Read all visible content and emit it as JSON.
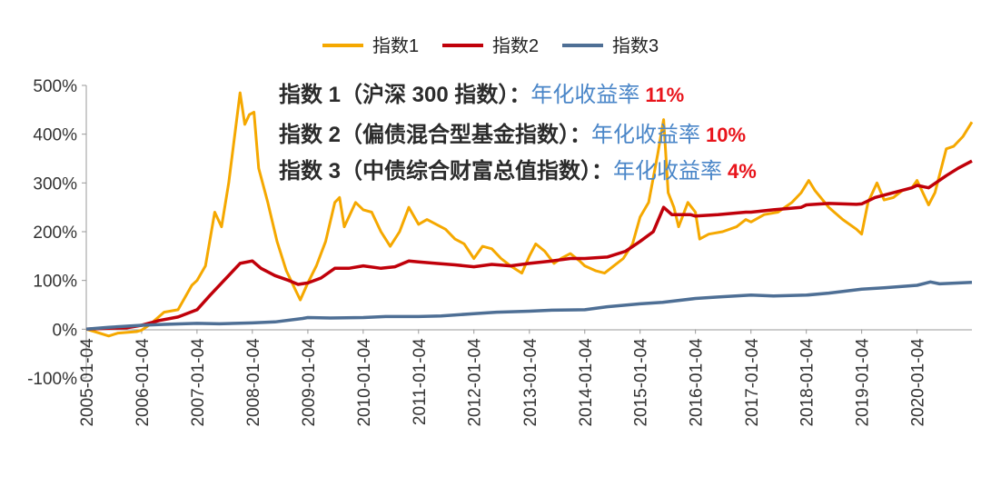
{
  "chart_data": {
    "type": "line",
    "title": "",
    "xlabel": "",
    "ylabel": "",
    "ylim": [
      -100,
      500
    ],
    "y_ticks": [
      -100,
      0,
      100,
      200,
      300,
      400,
      500
    ],
    "y_tick_labels": [
      "-100%",
      "0%",
      "100%",
      "200%",
      "300%",
      "400%",
      "500%"
    ],
    "x_ticks": [
      "2005-01-04",
      "2006-01-04",
      "2007-01-04",
      "2008-01-04",
      "2009-01-04",
      "2010-01-04",
      "2011-01-04",
      "2012-01-04",
      "2013-01-04",
      "2014-01-04",
      "2015-01-04",
      "2016-01-04",
      "2017-01-04",
      "2018-01-04",
      "2019-01-04",
      "2020-01-04"
    ],
    "x_end": "2020-12-31",
    "legend_position": "top-center",
    "grid": false,
    "series": [
      {
        "name": "指数1",
        "color": "#f5a800",
        "points": [
          [
            "2005-01-04",
            0
          ],
          [
            "2005-03-01",
            -5
          ],
          [
            "2005-06-01",
            -14
          ],
          [
            "2005-08-01",
            -8
          ],
          [
            "2005-12-01",
            -5
          ],
          [
            "2006-01-04",
            -2
          ],
          [
            "2006-03-01",
            10
          ],
          [
            "2006-06-01",
            35
          ],
          [
            "2006-09-01",
            40
          ],
          [
            "2006-12-01",
            90
          ],
          [
            "2007-01-04",
            100
          ],
          [
            "2007-03-01",
            130
          ],
          [
            "2007-05-01",
            240
          ],
          [
            "2007-06-15",
            210
          ],
          [
            "2007-08-01",
            300
          ],
          [
            "2007-10-15",
            485
          ],
          [
            "2007-11-15",
            420
          ],
          [
            "2007-12-15",
            440
          ],
          [
            "2008-01-15",
            445
          ],
          [
            "2008-02-15",
            330
          ],
          [
            "2008-04-15",
            260
          ],
          [
            "2008-06-15",
            180
          ],
          [
            "2008-08-15",
            120
          ],
          [
            "2008-10-15",
            80
          ],
          [
            "2008-11-15",
            60
          ],
          [
            "2009-01-04",
            95
          ],
          [
            "2009-03-01",
            130
          ],
          [
            "2009-05-01",
            180
          ],
          [
            "2009-07-01",
            260
          ],
          [
            "2009-08-01",
            270
          ],
          [
            "2009-09-01",
            210
          ],
          [
            "2009-11-15",
            260
          ],
          [
            "2010-01-04",
            245
          ],
          [
            "2010-03-01",
            240
          ],
          [
            "2010-05-01",
            200
          ],
          [
            "2010-07-01",
            170
          ],
          [
            "2010-09-01",
            200
          ],
          [
            "2010-11-01",
            250
          ],
          [
            "2011-01-04",
            215
          ],
          [
            "2011-03-01",
            225
          ],
          [
            "2011-05-01",
            215
          ],
          [
            "2011-07-01",
            205
          ],
          [
            "2011-09-01",
            185
          ],
          [
            "2011-11-01",
            175
          ],
          [
            "2012-01-04",
            145
          ],
          [
            "2012-03-01",
            170
          ],
          [
            "2012-05-01",
            165
          ],
          [
            "2012-07-01",
            145
          ],
          [
            "2012-09-01",
            130
          ],
          [
            "2012-11-15",
            115
          ],
          [
            "2013-01-04",
            150
          ],
          [
            "2013-02-15",
            175
          ],
          [
            "2013-04-15",
            160
          ],
          [
            "2013-06-15",
            135
          ],
          [
            "2013-08-01",
            145
          ],
          [
            "2013-10-01",
            155
          ],
          [
            "2013-12-01",
            140
          ],
          [
            "2014-01-04",
            130
          ],
          [
            "2014-03-15",
            120
          ],
          [
            "2014-05-15",
            115
          ],
          [
            "2014-07-15",
            130
          ],
          [
            "2014-09-15",
            145
          ],
          [
            "2014-11-15",
            175
          ],
          [
            "2015-01-04",
            230
          ],
          [
            "2015-03-01",
            260
          ],
          [
            "2015-05-01",
            360
          ],
          [
            "2015-06-08",
            430
          ],
          [
            "2015-07-08",
            280
          ],
          [
            "2015-08-15",
            250
          ],
          [
            "2015-09-15",
            210
          ],
          [
            "2015-11-15",
            260
          ],
          [
            "2016-01-04",
            240
          ],
          [
            "2016-02-01",
            185
          ],
          [
            "2016-04-01",
            195
          ],
          [
            "2016-07-01",
            200
          ],
          [
            "2016-10-01",
            210
          ],
          [
            "2016-12-01",
            225
          ],
          [
            "2017-01-04",
            220
          ],
          [
            "2017-04-01",
            235
          ],
          [
            "2017-07-01",
            240
          ],
          [
            "2017-10-01",
            260
          ],
          [
            "2017-12-01",
            280
          ],
          [
            "2018-01-20",
            305
          ],
          [
            "2018-03-01",
            285
          ],
          [
            "2018-06-01",
            250
          ],
          [
            "2018-09-01",
            225
          ],
          [
            "2018-12-01",
            205
          ],
          [
            "2019-01-04",
            195
          ],
          [
            "2019-02-15",
            260
          ],
          [
            "2019-04-15",
            300
          ],
          [
            "2019-06-01",
            265
          ],
          [
            "2019-08-01",
            270
          ],
          [
            "2019-10-01",
            285
          ],
          [
            "2019-12-01",
            290
          ],
          [
            "2020-01-04",
            305
          ],
          [
            "2020-03-20",
            255
          ],
          [
            "2020-05-01",
            280
          ],
          [
            "2020-07-15",
            370
          ],
          [
            "2020-09-01",
            375
          ],
          [
            "2020-11-01",
            395
          ],
          [
            "2020-12-31",
            425
          ]
        ]
      },
      {
        "name": "指数2",
        "color": "#c0000a",
        "points": [
          [
            "2005-01-04",
            0
          ],
          [
            "2005-06-01",
            2
          ],
          [
            "2005-10-01",
            3
          ],
          [
            "2006-01-04",
            8
          ],
          [
            "2006-05-01",
            18
          ],
          [
            "2006-09-01",
            25
          ],
          [
            "2007-01-04",
            40
          ],
          [
            "2007-04-01",
            70
          ],
          [
            "2007-07-01",
            100
          ],
          [
            "2007-10-15",
            135
          ],
          [
            "2008-01-04",
            140
          ],
          [
            "2008-03-01",
            125
          ],
          [
            "2008-06-01",
            110
          ],
          [
            "2008-09-01",
            100
          ],
          [
            "2008-11-01",
            92
          ],
          [
            "2009-01-04",
            95
          ],
          [
            "2009-04-01",
            105
          ],
          [
            "2009-07-01",
            125
          ],
          [
            "2009-10-01",
            125
          ],
          [
            "2010-01-04",
            130
          ],
          [
            "2010-05-01",
            125
          ],
          [
            "2010-08-01",
            128
          ],
          [
            "2010-11-01",
            140
          ],
          [
            "2011-01-04",
            138
          ],
          [
            "2011-05-01",
            135
          ],
          [
            "2011-09-01",
            132
          ],
          [
            "2012-01-04",
            128
          ],
          [
            "2012-05-01",
            133
          ],
          [
            "2012-09-01",
            130
          ],
          [
            "2013-01-04",
            135
          ],
          [
            "2013-06-01",
            140
          ],
          [
            "2013-10-01",
            145
          ],
          [
            "2014-01-04",
            145
          ],
          [
            "2014-06-01",
            148
          ],
          [
            "2014-10-01",
            160
          ],
          [
            "2015-01-04",
            180
          ],
          [
            "2015-04-01",
            200
          ],
          [
            "2015-06-08",
            250
          ],
          [
            "2015-08-01",
            235
          ],
          [
            "2015-12-01",
            235
          ],
          [
            "2016-01-04",
            232
          ],
          [
            "2016-06-01",
            235
          ],
          [
            "2016-12-01",
            240
          ],
          [
            "2017-01-04",
            240
          ],
          [
            "2017-06-01",
            245
          ],
          [
            "2017-12-01",
            250
          ],
          [
            "2018-01-04",
            255
          ],
          [
            "2018-06-01",
            258
          ],
          [
            "2018-12-01",
            256
          ],
          [
            "2019-01-04",
            257
          ],
          [
            "2019-04-01",
            270
          ],
          [
            "2019-08-01",
            280
          ],
          [
            "2019-12-01",
            290
          ],
          [
            "2020-01-04",
            295
          ],
          [
            "2020-03-20",
            290
          ],
          [
            "2020-07-15",
            315
          ],
          [
            "2020-10-01",
            330
          ],
          [
            "2020-12-31",
            345
          ]
        ]
      },
      {
        "name": "指数3",
        "color": "#4e6f95",
        "points": [
          [
            "2005-01-04",
            0
          ],
          [
            "2005-06-01",
            4
          ],
          [
            "2006-01-04",
            8
          ],
          [
            "2006-06-01",
            10
          ],
          [
            "2007-01-04",
            12
          ],
          [
            "2007-06-01",
            11
          ],
          [
            "2008-01-04",
            13
          ],
          [
            "2008-06-01",
            15
          ],
          [
            "2008-12-01",
            22
          ],
          [
            "2009-01-04",
            24
          ],
          [
            "2009-06-01",
            23
          ],
          [
            "2010-01-04",
            24
          ],
          [
            "2010-06-01",
            26
          ],
          [
            "2011-01-04",
            26
          ],
          [
            "2011-06-01",
            27
          ],
          [
            "2012-01-04",
            32
          ],
          [
            "2012-06-01",
            35
          ],
          [
            "2013-01-04",
            37
          ],
          [
            "2013-06-01",
            39
          ],
          [
            "2014-01-04",
            40
          ],
          [
            "2014-06-01",
            46
          ],
          [
            "2015-01-04",
            52
          ],
          [
            "2015-06-01",
            55
          ],
          [
            "2016-01-04",
            63
          ],
          [
            "2016-06-01",
            66
          ],
          [
            "2017-01-04",
            70
          ],
          [
            "2017-06-01",
            68
          ],
          [
            "2018-01-04",
            70
          ],
          [
            "2018-06-01",
            74
          ],
          [
            "2019-01-04",
            82
          ],
          [
            "2019-06-01",
            85
          ],
          [
            "2020-01-04",
            90
          ],
          [
            "2020-04-01",
            97
          ],
          [
            "2020-06-01",
            93
          ],
          [
            "2020-12-31",
            96
          ]
        ]
      }
    ],
    "annotations": [
      {
        "main": "指数 1（沪深 300 指数）：",
        "label": "年化收益率",
        "value": "11%"
      },
      {
        "main": "指数 2（偏债混合型基金指数）：",
        "label": "年化收益率",
        "value": "10%"
      },
      {
        "main": "指数 3（中债综合财富总值指数）：",
        "label": "年化收益率",
        "value": "4%"
      }
    ]
  }
}
